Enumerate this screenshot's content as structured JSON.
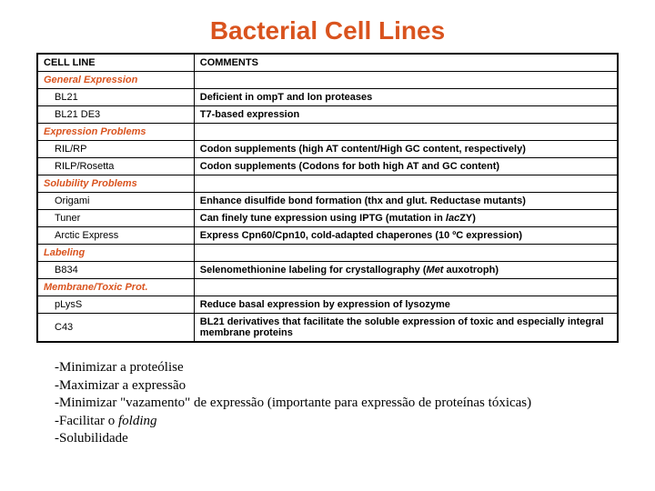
{
  "title": "Bacterial Cell Lines",
  "headers": {
    "cellLine": "CELL LINE",
    "comments": "COMMENTS"
  },
  "colors": {
    "title": "#d9531e",
    "sectionLabel": "#d9531e",
    "text": "#000000"
  },
  "sections": [
    {
      "label": "General Expression",
      "rows": [
        {
          "name": "BL21",
          "comment": "Deficient in ompT and lon proteases"
        },
        {
          "name": "BL21 DE3",
          "comment": "T7-based expression"
        }
      ]
    },
    {
      "label": "Expression Problems",
      "rows": [
        {
          "name": "RIL/RP",
          "comment": "Codon supplements (high AT content/High GC content, respectively)"
        },
        {
          "name": "RILP/Rosetta",
          "comment": "Codon supplements (Codons for both high AT and GC content)"
        }
      ]
    },
    {
      "label": "Solubility Problems",
      "rows": [
        {
          "name": "Origami",
          "comment": "Enhance disulfide bond formation (thx and glut. Reductase mutants)"
        },
        {
          "name": "Tuner",
          "comment_html": "Can finely tune expression using IPTG (mutation in <em class='it'>lac</em>ZY)"
        },
        {
          "name": "Arctic Express",
          "comment": "Express Cpn60/Cpn10, cold-adapted chaperones (10 ºC expression)"
        }
      ]
    },
    {
      "label": "Labeling",
      "rows": [
        {
          "name": "B834",
          "comment_html": "Selenomethionine labeling for crystallography (<em class='it'>Met</em> auxotroph)"
        }
      ]
    },
    {
      "label": "Membrane/Toxic Prot.",
      "rows": [
        {
          "name": "pLysS",
          "comment": "Reduce basal expression by expression of lysozyme"
        },
        {
          "name": "C43",
          "comment": "BL21 derivatives that facilitate the soluble expression of toxic and especially integral membrane proteins"
        }
      ]
    }
  ],
  "notes": [
    "-Minimizar a proteólise",
    "-Maximizar a expressão",
    "-Minimizar \"vazamento\" de expressão (importante para expressão de proteínas tóxicas)",
    "-Facilitar o <em class='it'>folding</em>",
    "-Solubilidade"
  ]
}
